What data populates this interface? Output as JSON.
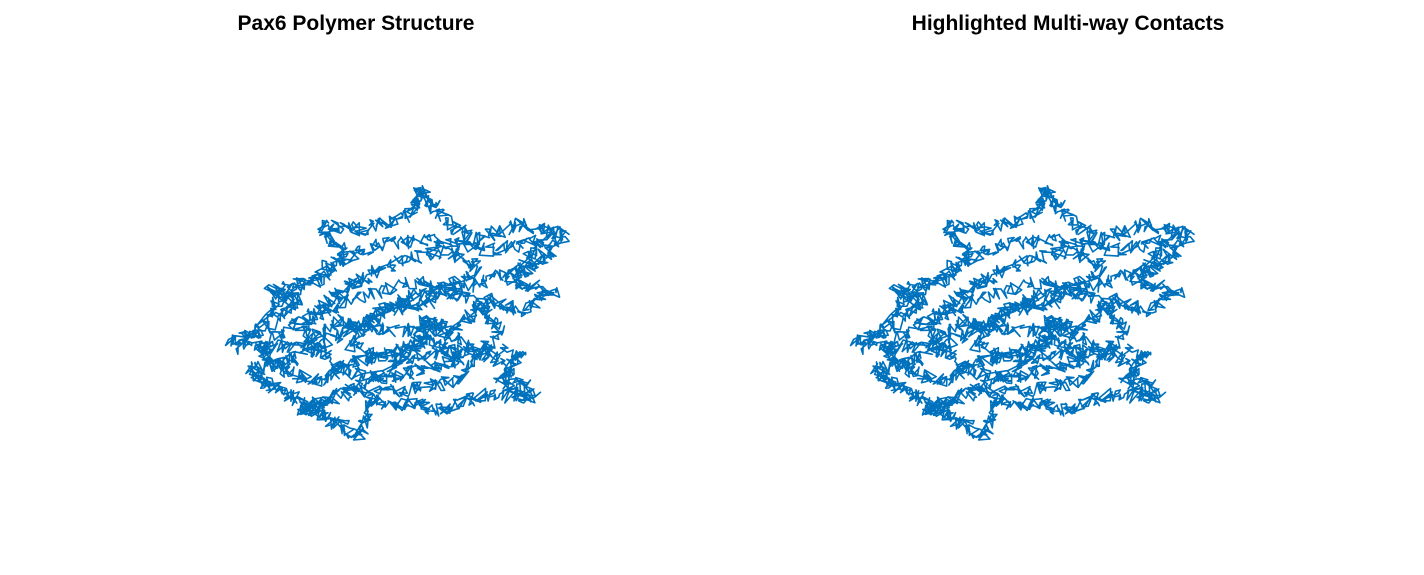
{
  "figure": {
    "left_title": "Pax6 Polymer Structure",
    "right_title": "Highlighted Multi-way Contacts"
  },
  "colors": {
    "polymer": "#0072BD",
    "contact": "#FF0000",
    "background": "#FFFFFF"
  },
  "chart_data": [
    {
      "type": "line",
      "title": "Pax6 Polymer Structure",
      "axes_visible": false,
      "series": [
        {
          "color": "#0072BD"
        }
      ]
    },
    {
      "type": "line",
      "title": "Highlighted Multi-way Contacts",
      "axes_visible": false,
      "series": [
        {
          "color": "#0072BD"
        },
        {
          "color": "#FF0000"
        }
      ]
    }
  ]
}
